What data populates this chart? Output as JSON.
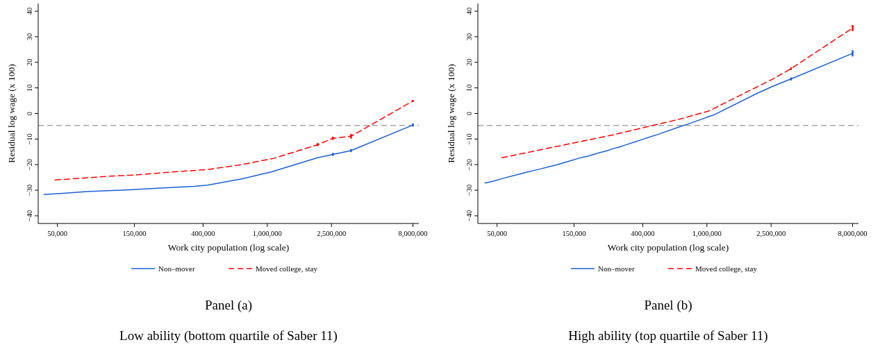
{
  "chart_data": [
    {
      "type": "line",
      "title": "Panel (a)",
      "subtitle": "Low ability (bottom quartile of Saber 11)",
      "xlabel": "Work city population (log scale)",
      "ylabel": "Residual log wage (x 100)",
      "log": "x",
      "xlim": [
        38000,
        8700000
      ],
      "ylim": [
        -43,
        43
      ],
      "xticks": [
        {
          "value": 50000,
          "label": "50,000"
        },
        {
          "value": 150000,
          "label": "150,000"
        },
        {
          "value": 400000,
          "label": "400,000"
        },
        {
          "value": 1000000,
          "label": "1,000,000"
        },
        {
          "value": 2500000,
          "label": "2,500,000"
        },
        {
          "value": 8000000,
          "label": "8,000,000"
        }
      ],
      "yticks": [
        {
          "value": -40,
          "label": "−40"
        },
        {
          "value": -30,
          "label": "−30"
        },
        {
          "value": -20,
          "label": "−20"
        },
        {
          "value": -10,
          "label": "−10"
        },
        0,
        10,
        20,
        30,
        40
      ],
      "ref_lines": [
        {
          "axis": "y",
          "value": -4.7,
          "color": "#a6a6a6",
          "line_style": "dashed"
        }
      ],
      "legend": "bottom",
      "series": [
        {
          "name": "Non–mover",
          "color": "#1a5fd6",
          "line_style": "solid",
          "x": [
            41300,
            48400,
            56700,
            76400,
            91400,
            109000,
            133000,
            190000,
            277000,
            352000,
            426000,
            503000,
            703000,
            1067000,
            2051000,
            2553000,
            3304000,
            8000000
          ],
          "values": [
            -31.7,
            -31.4,
            -31.1,
            -30.5,
            -30.3,
            -30.1,
            -29.9,
            -29.4,
            -28.8,
            -28.5,
            -28.0,
            -27.2,
            -25.5,
            -22.8,
            -17.3,
            -16.0,
            -14.5,
            -4.5
          ],
          "errors": [
            null,
            null,
            null,
            null,
            null,
            null,
            null,
            null,
            null,
            null,
            null,
            null,
            null,
            null,
            null,
            0.6,
            0.6,
            0.6
          ]
        },
        {
          "name": "Moved college, stay",
          "color": "#ff0000",
          "line_style": "dashed",
          "x": [
            48400,
            107000,
            147000,
            267000,
            429000,
            690000,
            1089000,
            2051000,
            2553000,
            3304000,
            8000000
          ],
          "values": [
            -26.0,
            -24.5,
            -24.1,
            -22.8,
            -21.9,
            -20.0,
            -17.6,
            -12.2,
            -9.7,
            -8.9,
            4.9
          ],
          "errors": [
            null,
            null,
            null,
            null,
            null,
            null,
            null,
            0.6,
            0.6,
            0.9,
            0.4
          ]
        }
      ]
    },
    {
      "type": "line",
      "title": "Panel (b)",
      "subtitle": "High ability (top quartile of Saber 11)",
      "xlabel": "Work city population (log scale)",
      "ylabel": "Residual log wage (x 100)",
      "log": "x",
      "xlim": [
        38000,
        8700000
      ],
      "ylim": [
        -43,
        43
      ],
      "xticks": [
        {
          "value": 50000,
          "label": "50,000"
        },
        {
          "value": 150000,
          "label": "150,000"
        },
        {
          "value": 400000,
          "label": "400,000"
        },
        {
          "value": 1000000,
          "label": "1,000,000"
        },
        {
          "value": 2500000,
          "label": "2,500,000"
        },
        {
          "value": 8000000,
          "label": "8,000,000"
        }
      ],
      "yticks": [
        {
          "value": -40,
          "label": "−40"
        },
        {
          "value": -30,
          "label": "−30"
        },
        {
          "value": -20,
          "label": "−20"
        },
        {
          "value": -10,
          "label": "−10"
        },
        0,
        10,
        20,
        30,
        40
      ],
      "ref_lines": [
        {
          "axis": "y",
          "value": -4.7,
          "color": "#a6a6a6",
          "line_style": "dashed"
        }
      ],
      "legend": "bottom",
      "series": [
        {
          "name": "Non–mover",
          "color": "#1a5fd6",
          "line_style": "solid",
          "x": [
            42100,
            48400,
            54200,
            76700,
            91100,
            108000,
            117000,
            134000,
            167000,
            185000,
            208000,
            242000,
            260000,
            287000,
            320000,
            357000,
            395000,
            428000,
            501000,
            705000,
            733000,
            1042000,
            1092000,
            2070000,
            2581000,
            3320000,
            8000000
          ],
          "values": [
            -27.2,
            -26.3,
            -25.4,
            -22.9,
            -21.8,
            -20.6,
            -20.1,
            -19.0,
            -17.2,
            -16.6,
            -15.6,
            -14.5,
            -13.8,
            -13.1,
            -12.1,
            -11.1,
            -10.2,
            -9.5,
            -8.1,
            -4.8,
            -4.5,
            -1.1,
            -0.7,
            8.0,
            10.7,
            13.5,
            23.5
          ],
          "errors": [
            null,
            null,
            null,
            null,
            null,
            null,
            null,
            null,
            null,
            null,
            null,
            null,
            null,
            null,
            null,
            null,
            null,
            null,
            null,
            null,
            null,
            null,
            null,
            null,
            null,
            0.6,
            1.2
          ]
        },
        {
          "name": "Moved college, stay",
          "color": "#ff0000",
          "line_style": "dashed",
          "x": [
            53500,
            260000,
            419000,
            690000,
            1030000,
            2581000,
            3320000,
            8000000
          ],
          "values": [
            -17.3,
            -8.4,
            -5.3,
            -2.1,
            1.0,
            13.6,
            17.5,
            33.4
          ],
          "errors": [
            null,
            null,
            null,
            null,
            null,
            null,
            0.5,
            1.2
          ]
        }
      ]
    }
  ]
}
